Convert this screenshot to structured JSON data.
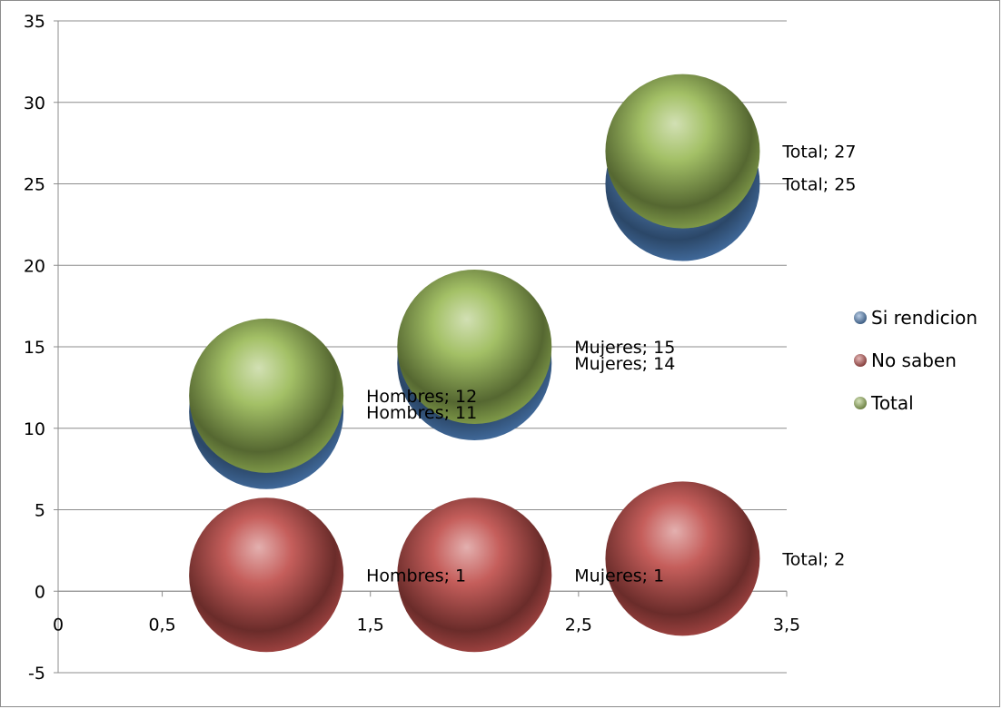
{
  "chart_data": {
    "type": "bubble",
    "title": "",
    "xlabel": "",
    "ylabel": "",
    "xlim": [
      0,
      3.5
    ],
    "ylim": [
      -5,
      35
    ],
    "x_ticks": [
      "0",
      "0,5",
      "1",
      "1,5",
      "2",
      "2,5",
      "3",
      "3,5"
    ],
    "y_ticks": [
      "-5",
      "0",
      "5",
      "10",
      "15",
      "20",
      "25",
      "30",
      "35"
    ],
    "grid": "horizontal",
    "legend_position": "right",
    "series": [
      {
        "name": "Si rendicion",
        "color": "#4f81bd",
        "points": [
          {
            "x": 1,
            "y": 11,
            "label": "Hombres; 11"
          },
          {
            "x": 2,
            "y": 14,
            "label": "Mujeres; 14"
          },
          {
            "x": 3,
            "y": 25,
            "label": "Total; 25"
          }
        ]
      },
      {
        "name": "No saben",
        "color": "#c0504d",
        "points": [
          {
            "x": 1,
            "y": 1,
            "label": "Hombres; 1"
          },
          {
            "x": 2,
            "y": 1,
            "label": "Mujeres; 1"
          },
          {
            "x": 3,
            "y": 2,
            "label": "Total; 2"
          }
        ]
      },
      {
        "name": "Total",
        "color": "#9bbb59",
        "points": [
          {
            "x": 1,
            "y": 12,
            "label": "Hombres; 12"
          },
          {
            "x": 2,
            "y": 15,
            "label": "Mujeres; 15"
          },
          {
            "x": 3,
            "y": 27,
            "label": "Total; 27"
          }
        ]
      }
    ]
  }
}
